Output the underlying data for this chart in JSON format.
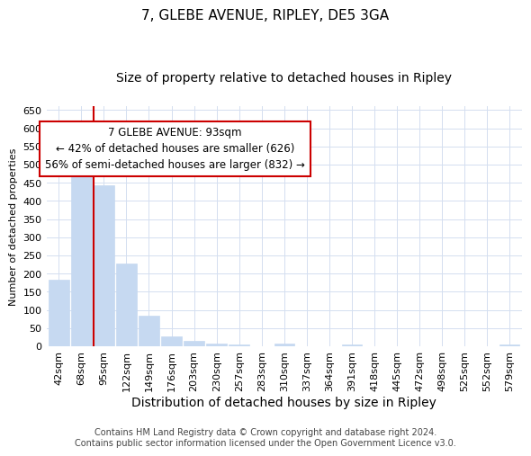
{
  "title": "7, GLEBE AVENUE, RIPLEY, DE5 3GA",
  "subtitle": "Size of property relative to detached houses in Ripley",
  "xlabel": "Distribution of detached houses by size in Ripley",
  "ylabel": "Number of detached properties",
  "categories": [
    "42sqm",
    "68sqm",
    "95sqm",
    "122sqm",
    "149sqm",
    "176sqm",
    "203sqm",
    "230sqm",
    "257sqm",
    "283sqm",
    "310sqm",
    "337sqm",
    "364sqm",
    "391sqm",
    "418sqm",
    "445sqm",
    "472sqm",
    "498sqm",
    "525sqm",
    "552sqm",
    "579sqm"
  ],
  "values": [
    183,
    510,
    442,
    228,
    83,
    28,
    15,
    8,
    5,
    0,
    8,
    0,
    0,
    5,
    0,
    0,
    0,
    0,
    0,
    0,
    5
  ],
  "bar_color": "#c6d9f1",
  "bar_edge_color": "#c6d9f1",
  "highlight_index": 2,
  "highlight_line_color": "#cc0000",
  "ylim": [
    0,
    660
  ],
  "yticks": [
    0,
    50,
    100,
    150,
    200,
    250,
    300,
    350,
    400,
    450,
    500,
    550,
    600,
    650
  ],
  "annotation_text": "7 GLEBE AVENUE: 93sqm\n← 42% of detached houses are smaller (626)\n56% of semi-detached houses are larger (832) →",
  "annotation_box_color": "#ffffff",
  "annotation_box_edge_color": "#cc0000",
  "footer_text": "Contains HM Land Registry data © Crown copyright and database right 2024.\nContains public sector information licensed under the Open Government Licence v3.0.",
  "background_color": "#ffffff",
  "grid_color": "#d4dff0",
  "title_fontsize": 11,
  "subtitle_fontsize": 10,
  "xlabel_fontsize": 10,
  "ylabel_fontsize": 8,
  "tick_fontsize": 8,
  "annotation_fontsize": 8.5,
  "footer_fontsize": 7
}
